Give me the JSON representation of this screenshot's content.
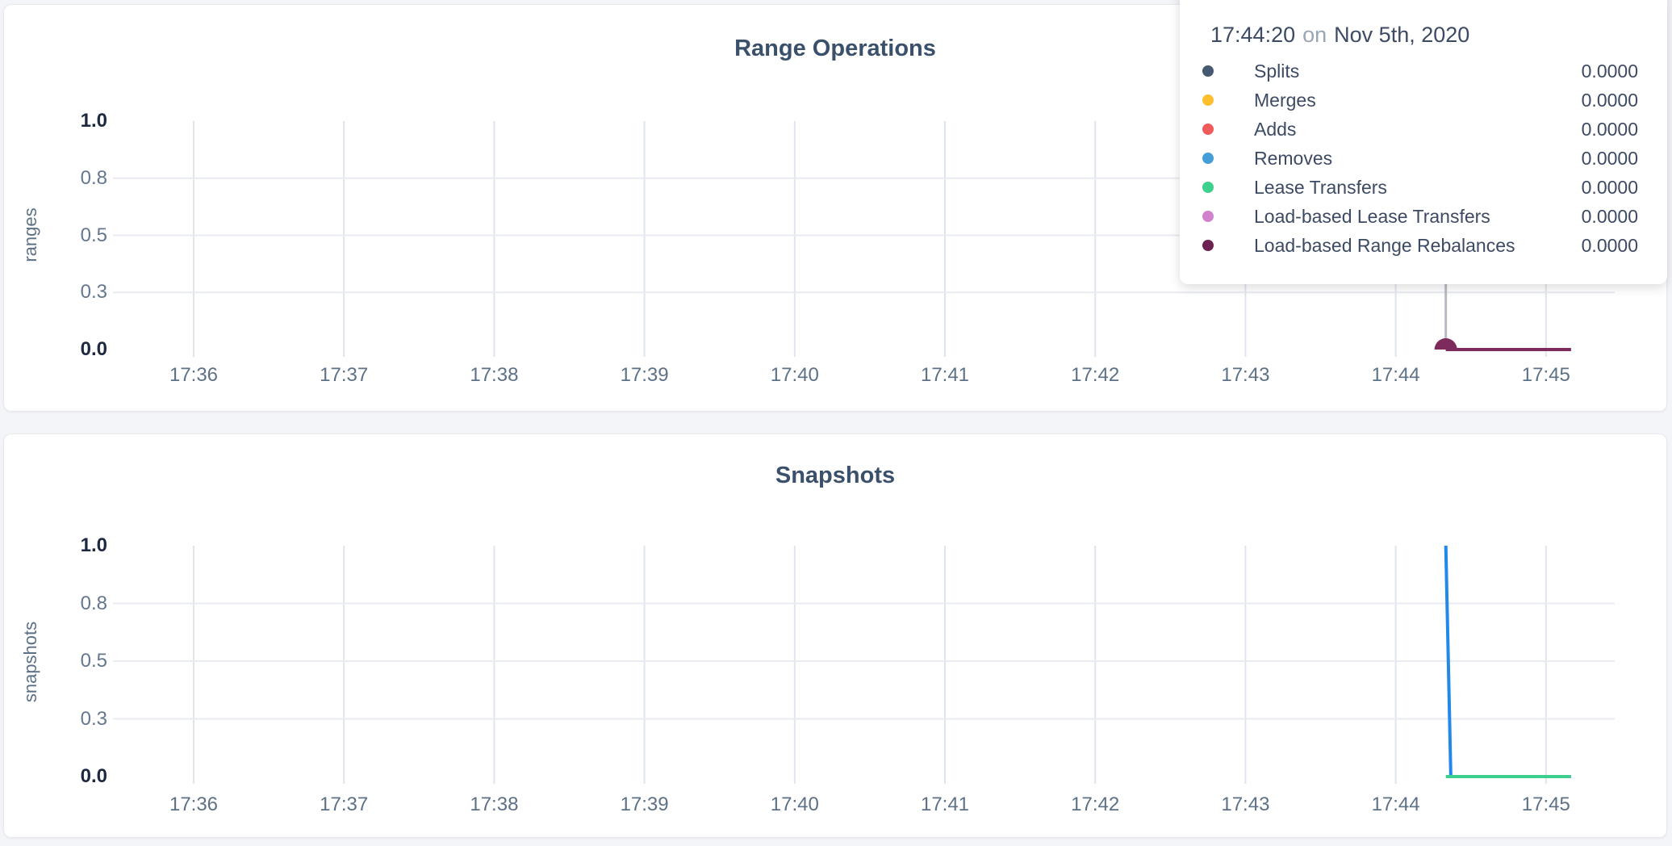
{
  "page": {
    "background": "#f4f5f8"
  },
  "tooltip": {
    "time": "17:44:20",
    "separator": "on",
    "date": "Nov 5th, 2020",
    "rows": [
      {
        "label": "Splits",
        "value": "0.0000",
        "color": "#475970"
      },
      {
        "label": "Merges",
        "value": "0.0000",
        "color": "#fdbf2d"
      },
      {
        "label": "Adds",
        "value": "0.0000",
        "color": "#f05a5a"
      },
      {
        "label": "Removes",
        "value": "0.0000",
        "color": "#459fd6"
      },
      {
        "label": "Lease Transfers",
        "value": "0.0000",
        "color": "#3fd08d"
      },
      {
        "label": "Load-based Lease Transfers",
        "value": "0.0000",
        "color": "#d083cc"
      },
      {
        "label": "Load-based Range Rebalances",
        "value": "0.0000",
        "color": "#6e2251"
      }
    ]
  },
  "chart_data": [
    {
      "type": "line",
      "title": "Range Operations",
      "ylabel": "ranges",
      "ylim": [
        0,
        1
      ],
      "yticks": [
        0,
        0.25,
        0.5,
        0.75,
        1
      ],
      "ytick_labels": [
        "0.0",
        "0.3",
        "0.5",
        "0.8",
        "1.0"
      ],
      "xticks": [
        "17:36",
        "17:37",
        "17:38",
        "17:39",
        "17:40",
        "17:41",
        "17:42",
        "17:43",
        "17:44",
        "17:45"
      ],
      "grid": true,
      "legend_position": "tooltip",
      "grid_color_h": "#e8ebf1",
      "grid_color_v": "#dfe5ec",
      "series": [
        {
          "name": "Splits",
          "color": "#475970",
          "points": [
            [
              "17:44:20",
              0
            ],
            [
              "17:45:10",
              0
            ]
          ]
        },
        {
          "name": "Merges",
          "color": "#fdbf2d",
          "points": [
            [
              "17:44:20",
              0
            ],
            [
              "17:45:10",
              0
            ]
          ]
        },
        {
          "name": "Adds",
          "color": "#f05a5a",
          "points": [
            [
              "17:44:20",
              0
            ],
            [
              "17:45:10",
              0
            ]
          ]
        },
        {
          "name": "Removes",
          "color": "#459fd6",
          "points": [
            [
              "17:44:20",
              0
            ],
            [
              "17:45:10",
              0
            ]
          ]
        },
        {
          "name": "Lease Transfers",
          "color": "#3fd08d",
          "points": [
            [
              "17:44:20",
              0
            ],
            [
              "17:45:10",
              0
            ]
          ]
        },
        {
          "name": "Load-based Lease Transfers",
          "color": "#d083cc",
          "points": [
            [
              "17:44:20",
              0
            ],
            [
              "17:45:10",
              0
            ]
          ]
        },
        {
          "name": "Load-based Range Rebalances",
          "color": "#7d2b5c",
          "points": [
            [
              "17:44:20",
              0
            ],
            [
              "17:45:10",
              0
            ]
          ]
        }
      ],
      "hover": {
        "time": "17:44:20",
        "value": 0,
        "dot_color": "#7d2b5c",
        "crosshair_color": "#b7bbc3"
      }
    },
    {
      "type": "line",
      "title": "Snapshots",
      "ylabel": "snapshots",
      "ylim": [
        0,
        1
      ],
      "yticks": [
        0,
        0.25,
        0.5,
        0.75,
        1
      ],
      "ytick_labels": [
        "0.0",
        "0.3",
        "0.5",
        "0.8",
        "1.0"
      ],
      "xticks": [
        "17:36",
        "17:37",
        "17:38",
        "17:39",
        "17:40",
        "17:41",
        "17:42",
        "17:43",
        "17:44",
        "17:45"
      ],
      "grid": true,
      "grid_color_h": "#e8ebf1",
      "grid_color_v": "#dfe5ec",
      "series": [
        {
          "name": "series-blue",
          "color": "#2389e9",
          "points": [
            [
              "17:44:20",
              1
            ],
            [
              "17:44:22",
              0
            ],
            [
              "17:45:10",
              0
            ]
          ]
        },
        {
          "name": "series-green",
          "color": "#3ecf8e",
          "points": [
            [
              "17:44:20",
              0
            ],
            [
              "17:45:10",
              0
            ]
          ]
        }
      ]
    }
  ]
}
